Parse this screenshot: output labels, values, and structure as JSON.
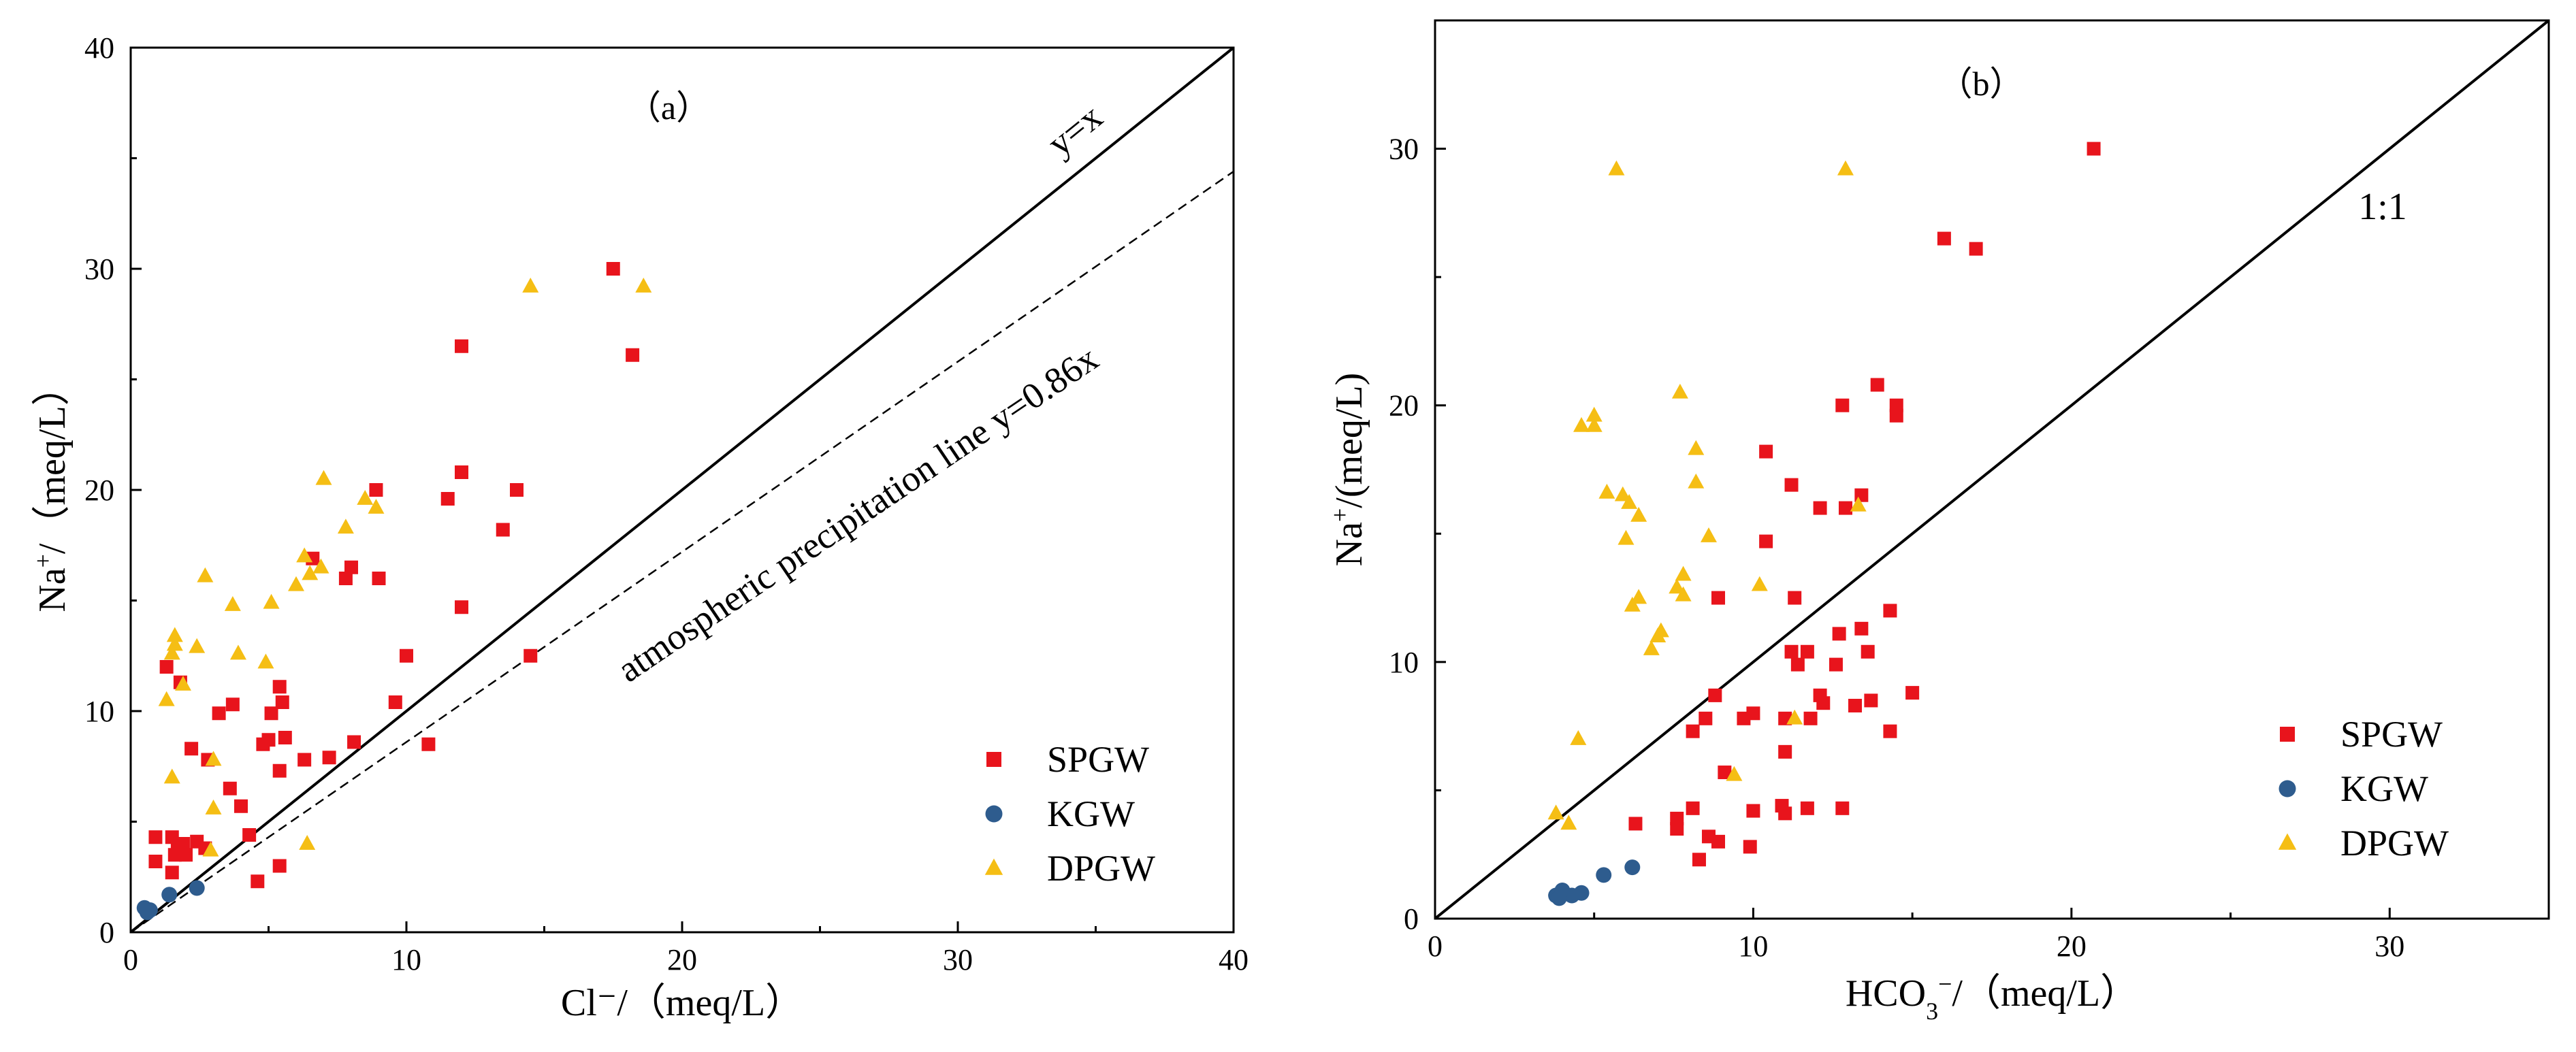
{
  "chart_data": [
    {
      "type": "scatter",
      "panel_label": "（a）",
      "xlabel": "Cl⁻/（meq/L）",
      "ylabel_main": "Na",
      "ylabel_sup": "+",
      "ylabel_rest": "/（meq/L）",
      "xlim": [
        0,
        40
      ],
      "ylim": [
        0,
        40
      ],
      "xticks": [
        0,
        10,
        20,
        30,
        40
      ],
      "yticks": [
        0,
        10,
        20,
        30,
        40
      ],
      "grid": false,
      "legend_position": "bottom-right",
      "reference_lines": [
        {
          "name": "y=x",
          "label": "y=x",
          "slope": 1,
          "style": "solid"
        },
        {
          "name": "atmospheric-precipitation-line",
          "label": "atmospheric precipitation line y=0.86x",
          "slope": 0.86,
          "style": "dashed"
        }
      ],
      "series": [
        {
          "name": "SPGW",
          "marker": "square",
          "color": "#e8141c",
          "points": [
            [
              17.5,
              30.0
            ],
            [
              12.0,
              26.5
            ],
            [
              18.2,
              26.1
            ],
            [
              12.0,
              20.8
            ],
            [
              14.0,
              20.0
            ],
            [
              8.9,
              20.0
            ],
            [
              11.5,
              19.6
            ],
            [
              13.5,
              18.2
            ],
            [
              8.0,
              16.5
            ],
            [
              9.0,
              16.0
            ],
            [
              7.8,
              16.0
            ],
            [
              6.6,
              16.9
            ],
            [
              12.0,
              14.7
            ],
            [
              14.5,
              12.5
            ],
            [
              10.0,
              12.5
            ],
            [
              1.3,
              12.0
            ],
            [
              1.8,
              11.3
            ],
            [
              5.4,
              11.1
            ],
            [
              3.7,
              10.3
            ],
            [
              5.5,
              10.4
            ],
            [
              9.6,
              10.4
            ],
            [
              3.2,
              9.9
            ],
            [
              5.1,
              9.9
            ],
            [
              5.6,
              8.8
            ],
            [
              10.8,
              8.5
            ],
            [
              4.8,
              8.5
            ],
            [
              5.0,
              8.7
            ],
            [
              8.1,
              8.6
            ],
            [
              2.2,
              8.3
            ],
            [
              2.8,
              7.8
            ],
            [
              6.3,
              7.8
            ],
            [
              7.2,
              7.9
            ],
            [
              5.4,
              7.3
            ],
            [
              3.6,
              6.5
            ],
            [
              4.0,
              5.7
            ],
            [
              4.3,
              4.4
            ],
            [
              0.9,
              4.3
            ],
            [
              1.5,
              4.3
            ],
            [
              1.9,
              4.0
            ],
            [
              2.4,
              4.1
            ],
            [
              1.7,
              3.8
            ],
            [
              2.0,
              3.5
            ],
            [
              2.7,
              3.8
            ],
            [
              1.6,
              3.5
            ],
            [
              0.9,
              3.2
            ],
            [
              1.5,
              2.7
            ],
            [
              5.4,
              3.0
            ],
            [
              4.6,
              2.3
            ]
          ]
        },
        {
          "name": "KGW",
          "marker": "circle",
          "color": "#2e5c8e",
          "points": [
            [
              0.5,
              1.1
            ],
            [
              0.6,
              0.9
            ],
            [
              0.7,
              1.0
            ],
            [
              1.4,
              1.7
            ],
            [
              2.4,
              2.0
            ]
          ]
        },
        {
          "name": "DPGW",
          "marker": "triangle",
          "color": "#f5be14",
          "points": [
            [
              14.5,
              29.2
            ],
            [
              18.6,
              29.2
            ],
            [
              7.0,
              20.5
            ],
            [
              8.5,
              19.6
            ],
            [
              8.9,
              19.2
            ],
            [
              7.8,
              18.3
            ],
            [
              6.3,
              17.0
            ],
            [
              6.9,
              16.5
            ],
            [
              6.5,
              16.2
            ],
            [
              2.7,
              16.1
            ],
            [
              6.0,
              15.7
            ],
            [
              3.7,
              14.8
            ],
            [
              5.1,
              14.9
            ],
            [
              1.6,
              13.4
            ],
            [
              1.6,
              13.0
            ],
            [
              2.4,
              12.9
            ],
            [
              1.5,
              12.6
            ],
            [
              3.9,
              12.6
            ],
            [
              4.9,
              12.2
            ],
            [
              1.9,
              11.2
            ],
            [
              1.3,
              10.5
            ],
            [
              3.0,
              7.8
            ],
            [
              1.5,
              7.0
            ],
            [
              3.0,
              5.6
            ],
            [
              2.9,
              3.7
            ],
            [
              6.4,
              4.0
            ]
          ]
        }
      ]
    },
    {
      "type": "scatter",
      "panel_label": "（b）",
      "xlabel_main": "HCO",
      "xlabel_sub": "3",
      "xlabel_sup": "−",
      "xlabel_rest": "/（meq/L）",
      "ylabel_main": "Na",
      "ylabel_sup": "+",
      "ylabel_rest": "/(meq/L)",
      "xlim": [
        0,
        35
      ],
      "ylim": [
        0,
        35
      ],
      "xticks": [
        0,
        10,
        20,
        30
      ],
      "yticks": [
        0,
        10,
        20,
        30
      ],
      "grid": false,
      "legend_position": "bottom-right",
      "reference_lines": [
        {
          "name": "one-to-one-line",
          "label": "1:1",
          "slope": 1,
          "style": "solid"
        }
      ],
      "series": [
        {
          "name": "SPGW",
          "marker": "square",
          "color": "#e8141c",
          "points": [
            [
              20.7,
              30.0
            ],
            [
              16.0,
              26.5
            ],
            [
              17.0,
              26.1
            ],
            [
              13.9,
              20.8
            ],
            [
              12.8,
              20.0
            ],
            [
              14.5,
              20.0
            ],
            [
              14.5,
              19.6
            ],
            [
              10.4,
              18.2
            ],
            [
              11.2,
              16.9
            ],
            [
              12.1,
              16.0
            ],
            [
              12.9,
              16.0
            ],
            [
              13.4,
              16.5
            ],
            [
              10.4,
              14.7
            ],
            [
              11.3,
              12.5
            ],
            [
              8.9,
              12.5
            ],
            [
              14.3,
              12.0
            ],
            [
              13.4,
              11.3
            ],
            [
              12.7,
              11.1
            ],
            [
              11.2,
              10.4
            ],
            [
              11.7,
              10.4
            ],
            [
              13.6,
              10.4
            ],
            [
              11.4,
              9.9
            ],
            [
              12.6,
              9.9
            ],
            [
              8.8,
              8.7
            ],
            [
              12.1,
              8.7
            ],
            [
              15.0,
              8.8
            ],
            [
              13.7,
              8.5
            ],
            [
              12.2,
              8.4
            ],
            [
              13.2,
              8.3
            ],
            [
              8.5,
              7.8
            ],
            [
              9.7,
              7.8
            ],
            [
              10.0,
              8.0
            ],
            [
              11.0,
              7.8
            ],
            [
              11.8,
              7.8
            ],
            [
              8.1,
              7.3
            ],
            [
              14.3,
              7.3
            ],
            [
              11.0,
              6.5
            ],
            [
              9.1,
              5.7
            ],
            [
              8.1,
              4.3
            ],
            [
              10.0,
              4.2
            ],
            [
              10.9,
              4.4
            ],
            [
              11.0,
              4.1
            ],
            [
              11.7,
              4.3
            ],
            [
              12.8,
              4.3
            ],
            [
              7.6,
              3.9
            ],
            [
              7.6,
              3.5
            ],
            [
              6.3,
              3.7
            ],
            [
              8.6,
              3.2
            ],
            [
              8.9,
              3.0
            ],
            [
              9.9,
              2.8
            ],
            [
              8.3,
              2.3
            ]
          ]
        },
        {
          "name": "KGW",
          "marker": "circle",
          "color": "#2e5c8e",
          "points": [
            [
              3.8,
              0.9
            ],
            [
              4.0,
              1.1
            ],
            [
              4.3,
              0.9
            ],
            [
              4.6,
              1.0
            ],
            [
              3.9,
              0.8
            ],
            [
              5.3,
              1.7
            ],
            [
              6.2,
              2.0
            ]
          ]
        },
        {
          "name": "DPGW",
          "marker": "triangle",
          "color": "#f5be14",
          "points": [
            [
              5.7,
              29.2
            ],
            [
              12.9,
              29.2
            ],
            [
              7.7,
              20.5
            ],
            [
              5.0,
              19.6
            ],
            [
              4.6,
              19.2
            ],
            [
              5.0,
              19.2
            ],
            [
              8.2,
              18.3
            ],
            [
              8.2,
              17.0
            ],
            [
              5.4,
              16.6
            ],
            [
              5.9,
              16.5
            ],
            [
              6.1,
              16.2
            ],
            [
              13.3,
              16.1
            ],
            [
              6.4,
              15.7
            ],
            [
              6.0,
              14.8
            ],
            [
              8.6,
              14.9
            ],
            [
              7.8,
              13.4
            ],
            [
              10.2,
              13.0
            ],
            [
              7.6,
              12.9
            ],
            [
              6.4,
              12.5
            ],
            [
              7.8,
              12.6
            ],
            [
              6.2,
              12.2
            ],
            [
              7.1,
              11.2
            ],
            [
              7.0,
              11.0
            ],
            [
              6.8,
              10.5
            ],
            [
              11.3,
              7.8
            ],
            [
              9.4,
              5.6
            ],
            [
              4.5,
              7.0
            ],
            [
              3.8,
              4.1
            ],
            [
              4.2,
              3.7
            ]
          ]
        }
      ]
    }
  ]
}
